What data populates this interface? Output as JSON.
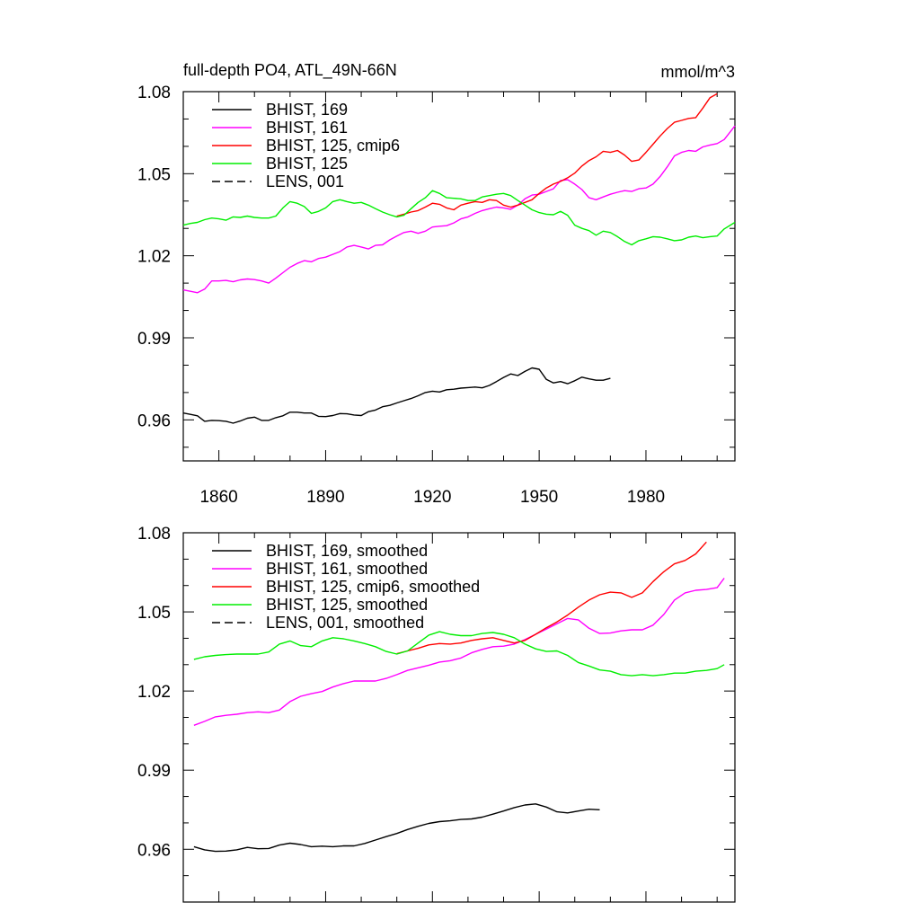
{
  "colors": {
    "BHIST_169": "#000000",
    "BHIST_161": "#ff00ff",
    "BHIST_125_cmip6": "#ff0000",
    "BHIST_125": "#00ee00",
    "LENS_001": "#000000"
  },
  "chart_data": [
    {
      "type": "line",
      "title": "full-depth PO4, ATL_49N-66N",
      "units": "mmol/m^3",
      "ylim": [
        0.945,
        1.08
      ],
      "xlim": [
        1850,
        2005
      ],
      "yticks": [
        "0.96",
        "0.99",
        "1.02",
        "1.05",
        "1.08"
      ],
      "xticks": [
        "1860",
        "1890",
        "1920",
        "1950",
        "1980"
      ],
      "legend_position": "top-left",
      "series": [
        {
          "name": "BHIST, 169",
          "key": "BHIST_169",
          "dash": "solid",
          "x": [
            1850,
            1852,
            1854,
            1856,
            1858,
            1860,
            1862,
            1864,
            1866,
            1868,
            1870,
            1872,
            1874,
            1876,
            1878,
            1880,
            1882,
            1884,
            1886,
            1888,
            1890,
            1892,
            1894,
            1896,
            1898,
            1900,
            1902,
            1904,
            1906,
            1908,
            1910,
            1912,
            1914,
            1916,
            1918,
            1920,
            1922,
            1924,
            1926,
            1928,
            1930,
            1932,
            1934,
            1936,
            1938,
            1940,
            1942,
            1944,
            1946,
            1948,
            1950,
            1952,
            1954,
            1956,
            1958,
            1960,
            1962,
            1964,
            1966,
            1968,
            1970
          ],
          "y": [
            0.9625,
            0.962,
            0.9615,
            0.9595,
            0.9598,
            0.9597,
            0.9595,
            0.9588,
            0.9596,
            0.9606,
            0.961,
            0.9598,
            0.9598,
            0.9608,
            0.9615,
            0.9628,
            0.9628,
            0.9625,
            0.9625,
            0.9613,
            0.9612,
            0.9616,
            0.9623,
            0.9622,
            0.9618,
            0.9616,
            0.963,
            0.9636,
            0.9648,
            0.9653,
            0.9662,
            0.967,
            0.9678,
            0.9688,
            0.97,
            0.9705,
            0.9702,
            0.971,
            0.9712,
            0.9716,
            0.9718,
            0.972,
            0.9717,
            0.9726,
            0.974,
            0.9755,
            0.9768,
            0.9762,
            0.9777,
            0.979,
            0.9785,
            0.9748,
            0.9735,
            0.974,
            0.9732,
            0.9743,
            0.9756,
            0.975,
            0.9745,
            0.9745,
            0.9752
          ]
        },
        {
          "name": "BHIST, 161",
          "key": "BHIST_161",
          "dash": "solid",
          "x": [
            1850,
            1852,
            1854,
            1856,
            1858,
            1860,
            1862,
            1864,
            1866,
            1868,
            1870,
            1872,
            1874,
            1876,
            1878,
            1880,
            1882,
            1884,
            1886,
            1888,
            1890,
            1892,
            1894,
            1896,
            1898,
            1900,
            1902,
            1904,
            1906,
            1908,
            1910,
            1912,
            1914,
            1916,
            1918,
            1920,
            1922,
            1924,
            1926,
            1928,
            1930,
            1932,
            1934,
            1936,
            1938,
            1940,
            1942,
            1944,
            1946,
            1948,
            1950,
            1952,
            1954,
            1956,
            1958,
            1960,
            1962,
            1964,
            1966,
            1968,
            1970,
            1972,
            1974,
            1976,
            1978,
            1980,
            1982,
            1984,
            1986,
            1988,
            1990,
            1992,
            1994,
            1996,
            1998,
            2000,
            2002,
            2005
          ],
          "y": [
            1.0075,
            1.007,
            1.0065,
            1.0078,
            1.0108,
            1.0108,
            1.011,
            1.0105,
            1.0112,
            1.0115,
            1.0113,
            1.0108,
            1.01,
            1.0118,
            1.0138,
            1.0158,
            1.0172,
            1.0182,
            1.0178,
            1.019,
            1.0195,
            1.0205,
            1.0215,
            1.0232,
            1.0238,
            1.0232,
            1.0225,
            1.0238,
            1.024,
            1.0258,
            1.0272,
            1.0285,
            1.029,
            1.0282,
            1.029,
            1.0305,
            1.0308,
            1.031,
            1.032,
            1.0335,
            1.0342,
            1.0355,
            1.0365,
            1.0372,
            1.0378,
            1.0375,
            1.037,
            1.0385,
            1.0408,
            1.0422,
            1.0425,
            1.0435,
            1.0445,
            1.0475,
            1.0478,
            1.0462,
            1.0442,
            1.0412,
            1.0405,
            1.0415,
            1.0425,
            1.0432,
            1.0438,
            1.0435,
            1.0445,
            1.0448,
            1.0462,
            1.049,
            1.0525,
            1.0565,
            1.0578,
            1.0585,
            1.0582,
            1.0598,
            1.0605,
            1.061,
            1.0625,
            1.0675
          ]
        },
        {
          "name": "BHIST, 125, cmip6",
          "key": "BHIST_125_cmip6",
          "dash": "solid",
          "x": [
            1910,
            1912,
            1914,
            1916,
            1918,
            1920,
            1922,
            1924,
            1926,
            1928,
            1930,
            1932,
            1934,
            1936,
            1938,
            1940,
            1942,
            1944,
            1946,
            1948,
            1950,
            1952,
            1954,
            1956,
            1958,
            1960,
            1962,
            1964,
            1966,
            1968,
            1970,
            1972,
            1974,
            1976,
            1978,
            1980,
            1982,
            1984,
            1986,
            1988,
            1990,
            1992,
            1994,
            1996,
            1998,
            2000
          ],
          "y": [
            1.0345,
            1.0352,
            1.036,
            1.0365,
            1.0378,
            1.0392,
            1.0388,
            1.0375,
            1.0368,
            1.0385,
            1.0392,
            1.0398,
            1.0395,
            1.0405,
            1.0402,
            1.0385,
            1.0378,
            1.0385,
            1.0395,
            1.0405,
            1.0428,
            1.0448,
            1.0462,
            1.0472,
            1.0485,
            1.0502,
            1.0528,
            1.0548,
            1.0562,
            1.0582,
            1.0578,
            1.0585,
            1.0568,
            1.0545,
            1.055,
            1.0578,
            1.0608,
            1.0638,
            1.0665,
            1.0688,
            1.0695,
            1.0702,
            1.0705,
            1.074,
            1.0778,
            1.0792
          ]
        },
        {
          "name": "BHIST, 125",
          "key": "BHIST_125",
          "dash": "solid",
          "x": [
            1850,
            1852,
            1854,
            1856,
            1858,
            1860,
            1862,
            1864,
            1866,
            1868,
            1870,
            1872,
            1874,
            1876,
            1878,
            1880,
            1882,
            1884,
            1886,
            1888,
            1890,
            1892,
            1894,
            1896,
            1898,
            1900,
            1902,
            1904,
            1906,
            1908,
            1910,
            1912,
            1914,
            1916,
            1918,
            1920,
            1922,
            1924,
            1926,
            1928,
            1930,
            1932,
            1934,
            1936,
            1938,
            1940,
            1942,
            1944,
            1946,
            1948,
            1950,
            1952,
            1954,
            1956,
            1958,
            1960,
            1962,
            1964,
            1966,
            1968,
            1970,
            1972,
            1974,
            1976,
            1978,
            1980,
            1982,
            1984,
            1986,
            1988,
            1990,
            1992,
            1994,
            1996,
            1998,
            2000,
            2002,
            2005
          ],
          "y": [
            1.0312,
            1.0318,
            1.0322,
            1.0332,
            1.0338,
            1.0335,
            1.033,
            1.0342,
            1.034,
            1.0345,
            1.034,
            1.0338,
            1.0338,
            1.0345,
            1.0375,
            1.0398,
            1.0392,
            1.038,
            1.0355,
            1.0362,
            1.0375,
            1.0398,
            1.0405,
            1.0398,
            1.0392,
            1.0395,
            1.0385,
            1.0372,
            1.036,
            1.035,
            1.0342,
            1.0348,
            1.0372,
            1.0395,
            1.0412,
            1.0438,
            1.0428,
            1.0412,
            1.041,
            1.0408,
            1.0402,
            1.0402,
            1.0415,
            1.042,
            1.0425,
            1.0428,
            1.042,
            1.0402,
            1.0385,
            1.0368,
            1.0358,
            1.0352,
            1.035,
            1.0362,
            1.0348,
            1.0312,
            1.03,
            1.0292,
            1.0275,
            1.029,
            1.0285,
            1.027,
            1.0252,
            1.024,
            1.0255,
            1.0262,
            1.027,
            1.0268,
            1.0262,
            1.0255,
            1.0258,
            1.0268,
            1.0272,
            1.0266,
            1.027,
            1.0272,
            1.0298,
            1.0322
          ]
        },
        {
          "name": "LENS, 001",
          "key": "LENS_001",
          "dash": "dashed",
          "x": [],
          "y": []
        }
      ]
    },
    {
      "type": "line",
      "title": "",
      "units": "",
      "ylim": [
        0.94,
        1.08
      ],
      "xlim": [
        1850,
        2005
      ],
      "yticks": [
        "0.96",
        "0.99",
        "1.02",
        "1.05",
        "1.08"
      ],
      "xticks": [],
      "legend_position": "top-left",
      "series": [
        {
          "name": "BHIST, 169, smoothed",
          "key": "BHIST_169",
          "dash": "solid",
          "x": [
            1853,
            1856,
            1859,
            1862,
            1865,
            1868,
            1871,
            1874,
            1877,
            1880,
            1883,
            1886,
            1889,
            1892,
            1895,
            1898,
            1901,
            1904,
            1907,
            1910,
            1913,
            1916,
            1919,
            1922,
            1925,
            1928,
            1931,
            1934,
            1937,
            1940,
            1943,
            1946,
            1949,
            1952,
            1955,
            1958,
            1961,
            1964,
            1967
          ],
          "y": [
            0.961,
            0.9598,
            0.9592,
            0.9593,
            0.9598,
            0.9607,
            0.9602,
            0.9603,
            0.9616,
            0.9623,
            0.9618,
            0.961,
            0.9612,
            0.961,
            0.9613,
            0.9613,
            0.9622,
            0.9635,
            0.9648,
            0.966,
            0.9675,
            0.9687,
            0.9698,
            0.9705,
            0.9708,
            0.9713,
            0.9715,
            0.9722,
            0.9733,
            0.9745,
            0.9758,
            0.9768,
            0.9772,
            0.976,
            0.9742,
            0.9738,
            0.9745,
            0.9752,
            0.975
          ]
        },
        {
          "name": "BHIST, 161, smoothed",
          "key": "BHIST_161",
          "dash": "solid",
          "x": [
            1853,
            1856,
            1859,
            1862,
            1865,
            1868,
            1871,
            1874,
            1877,
            1880,
            1883,
            1886,
            1889,
            1892,
            1895,
            1898,
            1901,
            1904,
            1907,
            1910,
            1913,
            1916,
            1919,
            1922,
            1925,
            1928,
            1931,
            1934,
            1937,
            1940,
            1943,
            1946,
            1949,
            1952,
            1955,
            1958,
            1961,
            1964,
            1967,
            1970,
            1973,
            1976,
            1979,
            1982,
            1985,
            1988,
            1991,
            1994,
            1997,
            2000,
            2002
          ],
          "y": [
            1.007,
            1.0085,
            1.0102,
            1.0108,
            1.0112,
            1.0118,
            1.0121,
            1.0118,
            1.0128,
            1.016,
            1.018,
            1.019,
            1.0198,
            1.0215,
            1.0228,
            1.0238,
            1.0238,
            1.0238,
            1.0248,
            1.0262,
            1.0278,
            1.0288,
            1.0298,
            1.031,
            1.0315,
            1.0325,
            1.0345,
            1.0358,
            1.0368,
            1.037,
            1.0378,
            1.0395,
            1.0415,
            1.0435,
            1.0455,
            1.0475,
            1.047,
            1.0438,
            1.0418,
            1.042,
            1.0428,
            1.0432,
            1.0432,
            1.045,
            1.049,
            1.0545,
            1.0572,
            1.0582,
            1.0585,
            1.0592,
            1.0628
          ]
        },
        {
          "name": "BHIST, 125, cmip6, smoothed",
          "key": "BHIST_125_cmip6",
          "dash": "solid",
          "x": [
            1910,
            1913,
            1916,
            1919,
            1922,
            1925,
            1928,
            1931,
            1934,
            1937,
            1940,
            1943,
            1946,
            1949,
            1952,
            1955,
            1958,
            1961,
            1964,
            1967,
            1970,
            1973,
            1976,
            1979,
            1982,
            1985,
            1988,
            1991,
            1994,
            1997
          ],
          "y": [
            1.0342,
            1.0352,
            1.0362,
            1.0375,
            1.038,
            1.0378,
            1.0382,
            1.0392,
            1.0398,
            1.0402,
            1.0392,
            1.0382,
            1.0392,
            1.0415,
            1.044,
            1.0462,
            1.0488,
            1.0518,
            1.0545,
            1.0565,
            1.0575,
            1.0572,
            1.0555,
            1.0572,
            1.0615,
            1.0652,
            1.0682,
            1.0695,
            1.072,
            1.0765
          ]
        },
        {
          "name": "BHIST, 125, smoothed",
          "key": "BHIST_125",
          "dash": "solid",
          "x": [
            1853,
            1856,
            1859,
            1862,
            1865,
            1868,
            1871,
            1874,
            1877,
            1880,
            1883,
            1886,
            1889,
            1892,
            1895,
            1898,
            1901,
            1904,
            1907,
            1910,
            1913,
            1916,
            1919,
            1922,
            1925,
            1928,
            1931,
            1934,
            1937,
            1940,
            1943,
            1946,
            1949,
            1952,
            1955,
            1958,
            1961,
            1964,
            1967,
            1970,
            1973,
            1976,
            1979,
            1982,
            1985,
            1988,
            1991,
            1994,
            1997,
            2000,
            2002
          ],
          "y": [
            1.032,
            1.033,
            1.0335,
            1.0338,
            1.034,
            1.034,
            1.034,
            1.0348,
            1.0378,
            1.039,
            1.0372,
            1.0368,
            1.039,
            1.0402,
            1.0398,
            1.039,
            1.038,
            1.0368,
            1.035,
            1.034,
            1.0352,
            1.0382,
            1.0412,
            1.0425,
            1.0415,
            1.041,
            1.041,
            1.0418,
            1.0422,
            1.0415,
            1.0402,
            1.0378,
            1.036,
            1.035,
            1.0352,
            1.0335,
            1.0308,
            1.0295,
            1.028,
            1.0275,
            1.0262,
            1.0258,
            1.0262,
            1.0258,
            1.0262,
            1.0268,
            1.0268,
            1.0275,
            1.0278,
            1.0285,
            1.03
          ]
        },
        {
          "name": "LENS, 001, smoothed",
          "key": "LENS_001",
          "dash": "dashed",
          "x": [],
          "y": []
        }
      ]
    }
  ]
}
